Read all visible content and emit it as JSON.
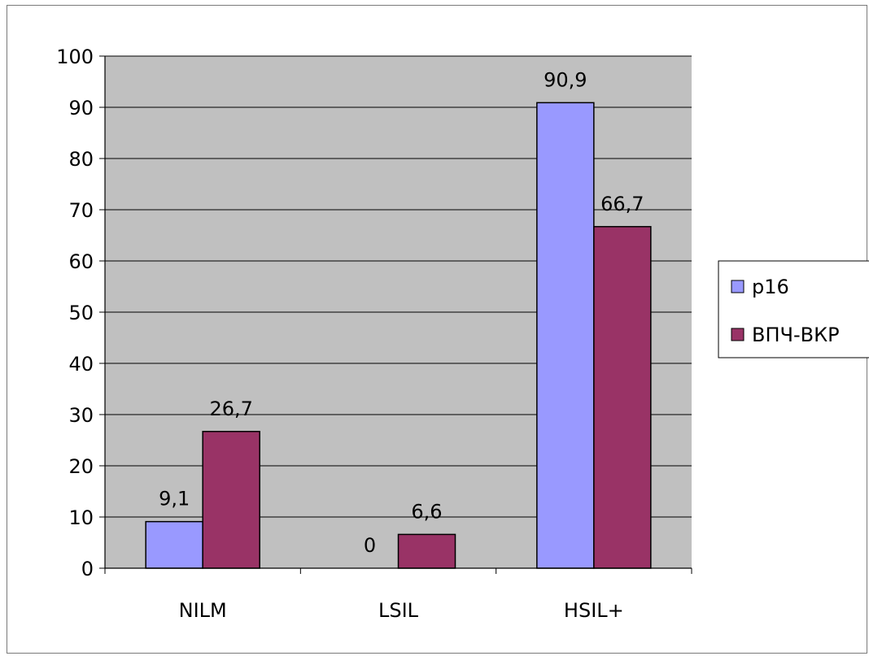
{
  "chart_data": {
    "type": "bar",
    "categories": [
      "NILM",
      "LSIL",
      "HSIL+"
    ],
    "series": [
      {
        "name": "p16",
        "values": [
          9.1,
          0,
          90.9
        ],
        "labels": [
          "9,1",
          "0",
          "90,9"
        ],
        "color": "#9999ff"
      },
      {
        "name": "ВПЧ-ВКР",
        "values": [
          26.7,
          6.6,
          66.7
        ],
        "labels": [
          "26,7",
          "6,6",
          "66,7"
        ],
        "color": "#993366"
      }
    ],
    "ylim": [
      0,
      100
    ],
    "yticks": [
      "0",
      "10",
      "20",
      "30",
      "40",
      "50",
      "60",
      "70",
      "80",
      "90",
      "100"
    ],
    "grid": true,
    "plot_background": "#c0c0c0",
    "legend_position": "right"
  }
}
